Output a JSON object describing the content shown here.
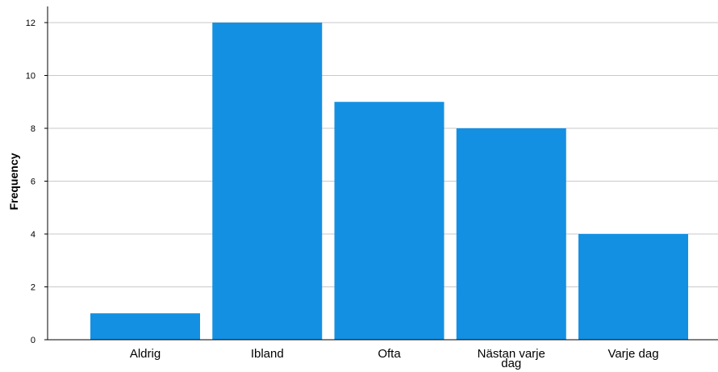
{
  "chart_data": {
    "type": "bar",
    "categories": [
      "Aldrig",
      "Ibland",
      "Ofta",
      "Nästan varje dag",
      "Varje dag"
    ],
    "category_label_lines": [
      [
        "Aldrig"
      ],
      [
        "Ibland"
      ],
      [
        "Ofta"
      ],
      [
        "Nästan varje",
        "dag"
      ],
      [
        "Varje dag"
      ]
    ],
    "values": [
      1,
      12,
      9,
      8,
      4
    ],
    "xlabel": "",
    "ylabel": "Frequency",
    "ylim": [
      0,
      12.5
    ],
    "yticks": [
      0,
      2,
      4,
      6,
      8,
      10,
      12
    ],
    "grid": true,
    "legend": "none",
    "bar_color": "#1490e3",
    "grid_color": "#c9c9c9",
    "axis_color": "#000000"
  }
}
